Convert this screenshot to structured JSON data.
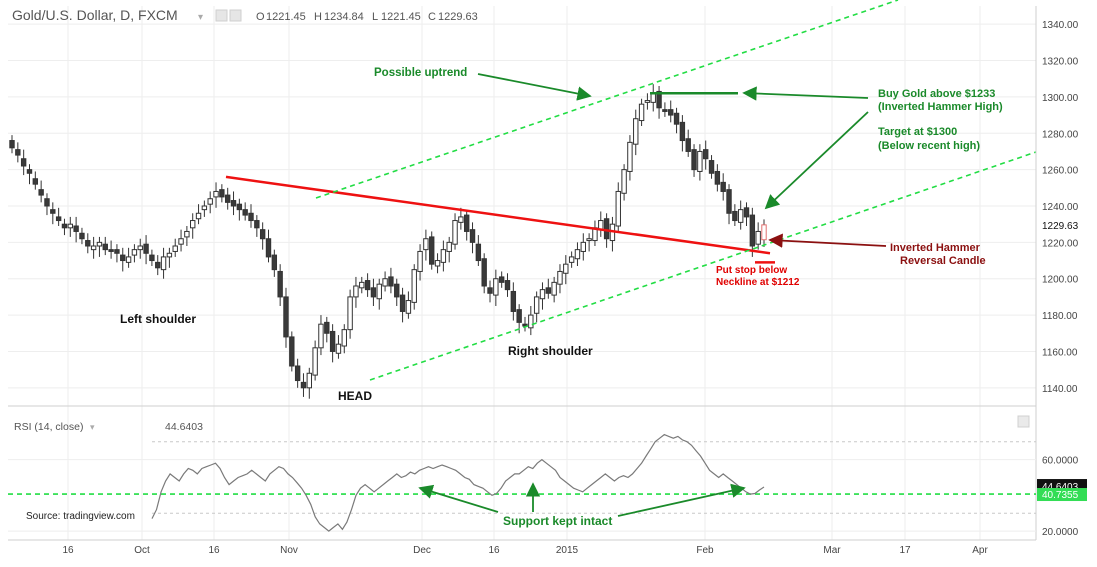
{
  "header": {
    "symbol": "Gold/U.S. Dollar, D, FXCM",
    "ohlc": {
      "o_label": "O",
      "o": "1221.45",
      "h_label": "H",
      "h": "1234.84",
      "l_label": "L",
      "l": "1221.45",
      "c_label": "C",
      "c": "1229.63"
    }
  },
  "colors": {
    "up": "#ffffff",
    "down": "#3a3a3a",
    "neckline": "#ee1111",
    "channel": "#22dd44",
    "green_text": "#1a8a2a",
    "red_text": "#e00000",
    "darkred": "#8b1010",
    "rsi_line": "#7a7a7a",
    "grid": "#eeeeee"
  },
  "chart_data": [
    {
      "type": "candlestick",
      "title": "Gold/U.S. Dollar, D, FXCM",
      "ylim": [
        1130,
        1350
      ],
      "y_ticks": [
        "1140.00",
        "1160.00",
        "1180.00",
        "1200.00",
        "1220.00",
        "1240.00",
        "1260.00",
        "1280.00",
        "1300.00",
        "1320.00",
        "1340.00"
      ],
      "last_price": "1229.63",
      "x_tick_labels": [
        "16",
        "Oct",
        "16",
        "Nov",
        "Dec",
        "16",
        "2015",
        "Feb",
        "Mar",
        "17",
        "Apr"
      ],
      "closes": [
        1272,
        1268,
        1262,
        1258,
        1252,
        1246,
        1240,
        1236,
        1232,
        1228,
        1230,
        1226,
        1222,
        1218,
        1218,
        1220,
        1216,
        1215,
        1214,
        1210,
        1212,
        1216,
        1218,
        1214,
        1210,
        1206,
        1212,
        1214,
        1218,
        1222,
        1226,
        1232,
        1236,
        1240,
        1244,
        1248,
        1245,
        1242,
        1240,
        1238,
        1235,
        1232,
        1228,
        1222,
        1212,
        1205,
        1190,
        1168,
        1152,
        1144,
        1140,
        1148,
        1162,
        1175,
        1170,
        1160,
        1164,
        1172,
        1190,
        1196,
        1198,
        1194,
        1190,
        1197,
        1200,
        1196,
        1190,
        1182,
        1188,
        1205,
        1215,
        1222,
        1208,
        1210,
        1216,
        1220,
        1232,
        1234,
        1226,
        1220,
        1210,
        1196,
        1192,
        1200,
        1198,
        1194,
        1182,
        1176,
        1174,
        1180,
        1190,
        1194,
        1192,
        1198,
        1204,
        1208,
        1212,
        1216,
        1220,
        1222,
        1228,
        1232,
        1222,
        1230,
        1248,
        1260,
        1275,
        1288,
        1296,
        1298,
        1302,
        1294,
        1292,
        1290,
        1285,
        1276,
        1270,
        1260,
        1270,
        1266,
        1258,
        1252,
        1248,
        1236,
        1232,
        1238,
        1234,
        1218,
        1226,
        1229.63
      ],
      "opens": [
        1276,
        1271,
        1266,
        1260,
        1255,
        1249,
        1244,
        1238,
        1234,
        1230,
        1228,
        1229,
        1225,
        1221,
        1216,
        1218,
        1219,
        1216,
        1216,
        1213,
        1209,
        1213,
        1216,
        1219,
        1213,
        1209,
        1205,
        1212,
        1215,
        1219,
        1223,
        1228,
        1233,
        1238,
        1241,
        1245,
        1249,
        1246,
        1243,
        1241,
        1238,
        1236,
        1232,
        1227,
        1222,
        1213,
        1204,
        1190,
        1168,
        1152,
        1143,
        1140,
        1147,
        1162,
        1176,
        1171,
        1159,
        1163,
        1172,
        1190,
        1195,
        1199,
        1195,
        1189,
        1196,
        1201,
        1197,
        1191,
        1181,
        1187,
        1204,
        1216,
        1223,
        1207,
        1209,
        1215,
        1219,
        1231,
        1235,
        1227,
        1219,
        1211,
        1195,
        1191,
        1201,
        1199,
        1193,
        1183,
        1175,
        1173,
        1181,
        1189,
        1195,
        1191,
        1197,
        1203,
        1209,
        1211,
        1215,
        1221,
        1221,
        1227,
        1233,
        1221,
        1229,
        1247,
        1259,
        1274,
        1287,
        1297,
        1297,
        1303,
        1293,
        1293,
        1291,
        1286,
        1277,
        1271,
        1259,
        1271,
        1265,
        1259,
        1253,
        1249,
        1237,
        1231,
        1239,
        1235,
        1219,
        1221.45
      ],
      "annotations": [
        {
          "label": "Left shoulder"
        },
        {
          "label": "HEAD"
        },
        {
          "label": "Right shoulder"
        },
        {
          "label": "Possible uptrend"
        },
        {
          "label": "Buy Gold above $1233",
          "label2": "(Inverted Hammer High)"
        },
        {
          "label": "Target at $1300",
          "label2": "(Below recent high)"
        },
        {
          "label": "Inverted Hammer",
          "label2": "Reversal Candle"
        },
        {
          "label": "Put stop below",
          "label2": "Neckline at $1212"
        }
      ],
      "lines": [
        {
          "name": "neckline",
          "from": [
            1256,
            "Sep 22"
          ],
          "to": [
            1214,
            "Feb 17"
          ]
        },
        {
          "name": "upper_channel",
          "slope": "up"
        },
        {
          "name": "lower_channel",
          "slope": "up"
        },
        {
          "name": "buy_level",
          "y": 1302
        },
        {
          "name": "stop_level",
          "y": 1209
        }
      ]
    },
    {
      "type": "line",
      "title": "RSI (14, close)",
      "current_value": "44.6403",
      "support_value": "40.7355",
      "ylim": [
        15,
        90
      ],
      "y_ticks": [
        "20.0000",
        "60.0000"
      ],
      "values": [
        27,
        32,
        42,
        48,
        52,
        50,
        48,
        52,
        55,
        54,
        52,
        55,
        56,
        57,
        58,
        55,
        50,
        46,
        48,
        50,
        51,
        52,
        54,
        52,
        50,
        48,
        52,
        54,
        56,
        55,
        52,
        50,
        47,
        44,
        40,
        35,
        28,
        24,
        22,
        20,
        22,
        24,
        21,
        25,
        32,
        40,
        44,
        46,
        44,
        42,
        44,
        46,
        48,
        50,
        52,
        50,
        51,
        53,
        52,
        54,
        55,
        56,
        55,
        56,
        57,
        56,
        55,
        54,
        52,
        50,
        49,
        46,
        45,
        44,
        42,
        40,
        41,
        44,
        48,
        50,
        52,
        52,
        54,
        56,
        55,
        58,
        60,
        58,
        56,
        54,
        50,
        48,
        46,
        44,
        43,
        42,
        44,
        46,
        48,
        50,
        52,
        50,
        48,
        50,
        51,
        50,
        52,
        55,
        58,
        62,
        66,
        70,
        72,
        74,
        73,
        72,
        73,
        71,
        70,
        68,
        65,
        62,
        58,
        54,
        52,
        50,
        52,
        50,
        48,
        46,
        44,
        42,
        40.7,
        41,
        43,
        44.64
      ]
    }
  ],
  "rsi_panel": {
    "label": "RSI (14, close)",
    "value_label": "44.6403"
  },
  "texts": {
    "source": "Source: tradingview.com",
    "support": "Support kept intact"
  }
}
